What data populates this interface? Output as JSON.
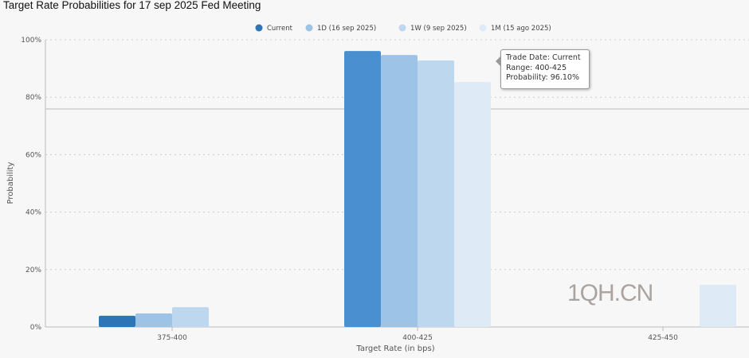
{
  "chart_data": {
    "type": "bar",
    "title": "Target Rate Probabilities for 17 sep 2025 Fed Meeting",
    "xlabel": "Target Rate (in bps)",
    "ylabel": "Probability",
    "ylim": [
      0,
      100
    ],
    "yticks": [
      "0%",
      "20%",
      "40%",
      "60%",
      "80%",
      "100%"
    ],
    "grid": true,
    "legend_position": "top",
    "categories": [
      "375-400",
      "400-425",
      "425-450"
    ],
    "series": [
      {
        "name": "Current",
        "color": "#2e75b6",
        "values": [
          3.9,
          96.1,
          0
        ]
      },
      {
        "name": "1D (16 sep 2025)",
        "color": "#9dc3e6",
        "values": [
          4.7,
          94.7,
          0
        ]
      },
      {
        "name": "1W (9 sep 2025)",
        "color": "#bdd7ee",
        "values": [
          6.9,
          92.8,
          0
        ]
      },
      {
        "name": "1M (15 ago 2025)",
        "color": "#deebf7",
        "values": [
          0,
          85.3,
          14.7
        ]
      }
    ],
    "hover_color": "#4a8fd0"
  },
  "tooltip": {
    "line1": "Trade Date: Current",
    "line2": "Range: 400-425",
    "line3": "Probability: 96.10%"
  },
  "watermark": "1QH.CN"
}
